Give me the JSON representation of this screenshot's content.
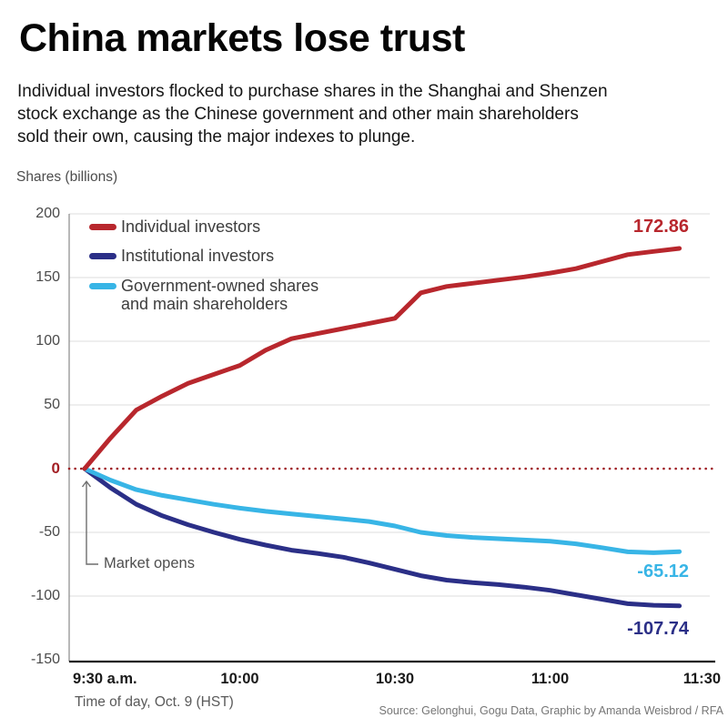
{
  "header": {
    "title": "China markets lose trust",
    "subtitle_lines": [
      "Individual investors flocked to purchase shares in the Shanghai and Shenzen",
      "stock exchange as the Chinese government and other main shareholders",
      "sold their own, causing the major indexes to plunge."
    ],
    "units_label": "Shares (billions)"
  },
  "chart_data": {
    "type": "line",
    "title": "China markets lose trust",
    "ylabel": "Shares (billions)",
    "xlabel": "Time of day, Oct. 9 (HST)",
    "ylim": [
      -150,
      200
    ],
    "grid": "horizontal",
    "legend_position": "top-left",
    "y_ticks": [
      200,
      150,
      100,
      50,
      0,
      -50,
      -100,
      -150
    ],
    "x_minutes_after_open": [
      0,
      5,
      10,
      15,
      20,
      25,
      30,
      35,
      40,
      45,
      50,
      55,
      60,
      65,
      70,
      75,
      80,
      85,
      90,
      95,
      100,
      105,
      110,
      115
    ],
    "x_ticks": [
      {
        "label": "9:30 a.m.",
        "minutes": 0,
        "align": "left"
      },
      {
        "label": "10:00",
        "minutes": 30,
        "align": "center"
      },
      {
        "label": "10:30",
        "minutes": 60,
        "align": "center"
      },
      {
        "label": "11:00",
        "minutes": 90,
        "align": "center"
      },
      {
        "label": "11:30",
        "minutes": 120,
        "align": "right"
      }
    ],
    "series": [
      {
        "name": "Individual investors",
        "legend_lines": [
          "Individual investors"
        ],
        "color": "#b8272d",
        "end_label": "172.86",
        "values": [
          0,
          24,
          46,
          57,
          67,
          74,
          81,
          93,
          102,
          106,
          110,
          114,
          118,
          138,
          143,
          145.5,
          148,
          150.5,
          153.5,
          157,
          162.5,
          168,
          170.5,
          172.86
        ]
      },
      {
        "name": "Institutional investors",
        "legend_lines": [
          "Institutional investors"
        ],
        "color": "#2b2f87",
        "end_label": "-107.74",
        "values": [
          0,
          -15,
          -28,
          -37,
          -44,
          -50,
          -55.5,
          -60,
          -64,
          -66.5,
          -69.5,
          -74,
          -79,
          -84,
          -87.5,
          -89.5,
          -91,
          -93,
          -95.5,
          -99,
          -102.5,
          -106,
          -107.2,
          -107.74
        ]
      },
      {
        "name": "Government-owned shares and main shareholders",
        "legend_lines": [
          "Government-owned shares",
          "and main shareholders"
        ],
        "color": "#38b5e6",
        "end_label": "-65.12",
        "values": [
          0,
          -9,
          -16.5,
          -21,
          -24.5,
          -28,
          -31,
          -33.5,
          -35.5,
          -37.5,
          -39.5,
          -41.5,
          -45,
          -50,
          -52.5,
          -54,
          -55,
          -56,
          -57,
          -59,
          -62,
          -65.3,
          -66,
          -65.12
        ]
      }
    ],
    "zero_line_color": "#9f2026",
    "annotation": "Market opens"
  },
  "footer": {
    "x_axis_title": "Time of day, Oct. 9 (HST)",
    "source": "Source: Gelonghui, Gogu Data, Graphic by Amanda Weisbrod / RFA"
  }
}
